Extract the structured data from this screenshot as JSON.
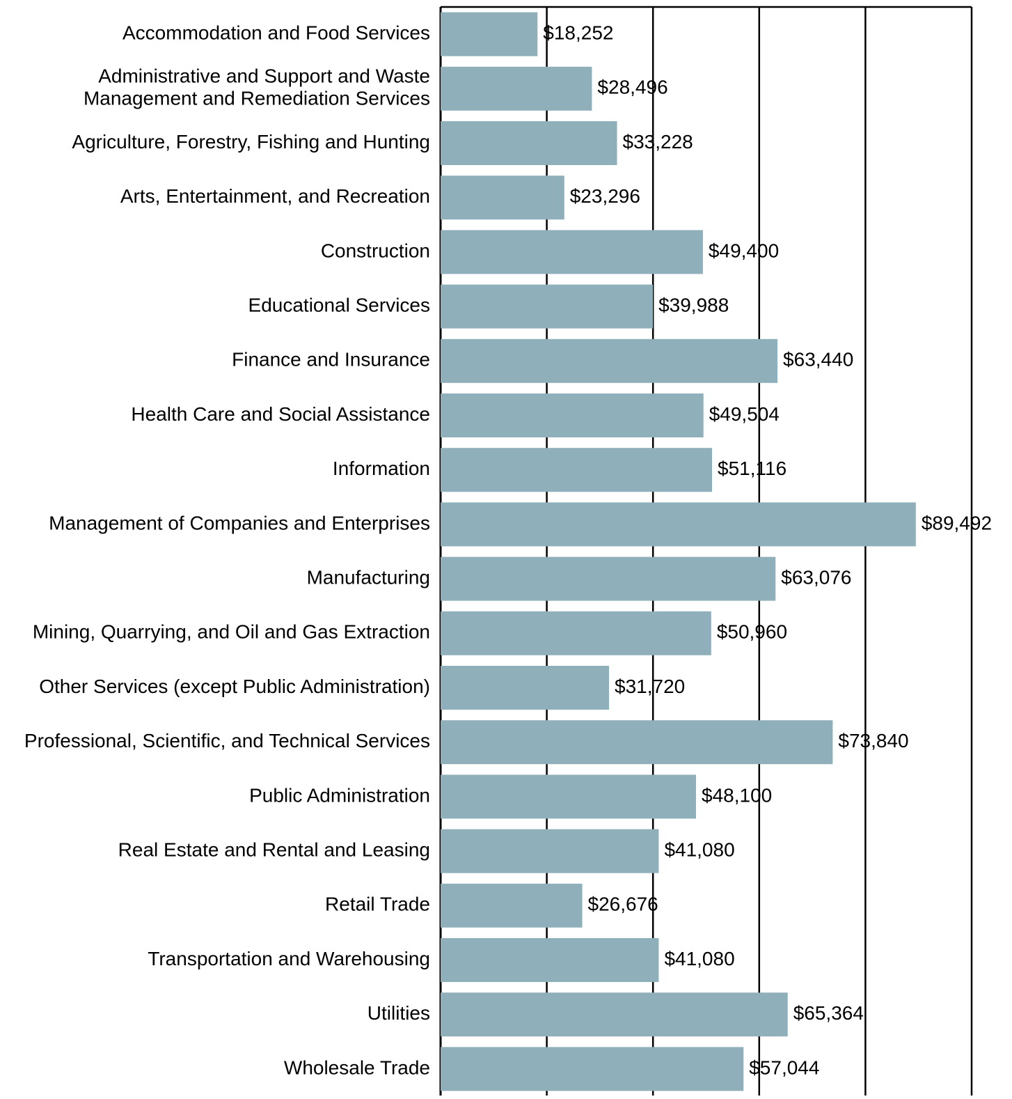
{
  "chart_data": {
    "type": "bar",
    "orientation": "horizontal",
    "categories": [
      "Accommodation and Food Services",
      "Administrative and Support and Waste\nManagement and Remediation Services",
      "Agriculture, Forestry, Fishing and Hunting",
      "Arts, Entertainment, and Recreation",
      "Construction",
      "Educational Services",
      "Finance and Insurance",
      "Health Care and Social Assistance",
      "Information",
      "Management of Companies and Enterprises",
      "Manufacturing",
      "Mining, Quarrying, and Oil and Gas Extraction",
      "Other Services (except Public Administration)",
      "Professional, Scientific, and Technical Services",
      "Public Administration",
      "Real Estate and Rental and Leasing",
      "Retail Trade",
      "Transportation and Warehousing",
      "Utilities",
      "Wholesale Trade"
    ],
    "values": [
      18252,
      28496,
      33228,
      23296,
      49400,
      39988,
      63440,
      49504,
      51116,
      89492,
      63076,
      50960,
      31720,
      73840,
      48100,
      41080,
      26676,
      41080,
      65364,
      57044
    ],
    "value_labels": [
      "$18,252",
      "$28,496",
      "$33,228",
      "$23,296",
      "$49,400",
      "$39,988",
      "$63,440",
      "$49,504",
      "$51,116",
      "$89,492",
      "$63,076",
      "$50,960",
      "$31,720",
      "$73,840",
      "$48,100",
      "$41,080",
      "$26,676",
      "$41,080",
      "$65,364",
      "$57,044"
    ],
    "color": "#8fafba",
    "xlim": [
      0,
      100000
    ],
    "xticks": [
      0,
      20000,
      40000,
      60000,
      80000,
      100000
    ],
    "grid": true
  }
}
